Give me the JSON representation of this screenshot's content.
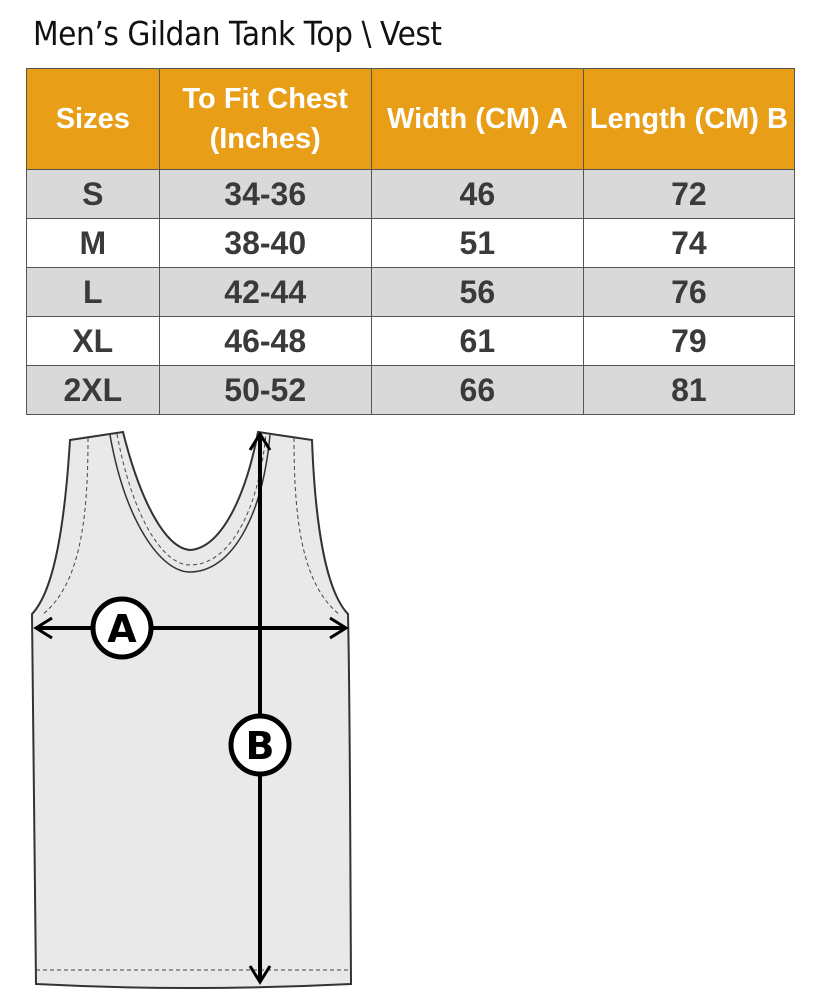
{
  "title": "Men’s Gildan Tank Top \\ Vest",
  "table": {
    "headers": [
      "Sizes",
      "To Fit Chest (Inches)",
      "Width (CM) A",
      "Length  (CM) B"
    ],
    "rows": [
      [
        "S",
        "34-36",
        "46",
        "72"
      ],
      [
        "M",
        "38-40",
        "51",
        "74"
      ],
      [
        "L",
        "42-44",
        "56",
        "76"
      ],
      [
        "XL",
        "46-48",
        "61",
        "79"
      ],
      [
        "2XL",
        "50-52",
        "66",
        "81"
      ]
    ]
  },
  "diagram": {
    "label_a": "A",
    "label_b": "B"
  },
  "colors": {
    "header": "#E99E18",
    "row_alt": "#D9D9D9"
  }
}
